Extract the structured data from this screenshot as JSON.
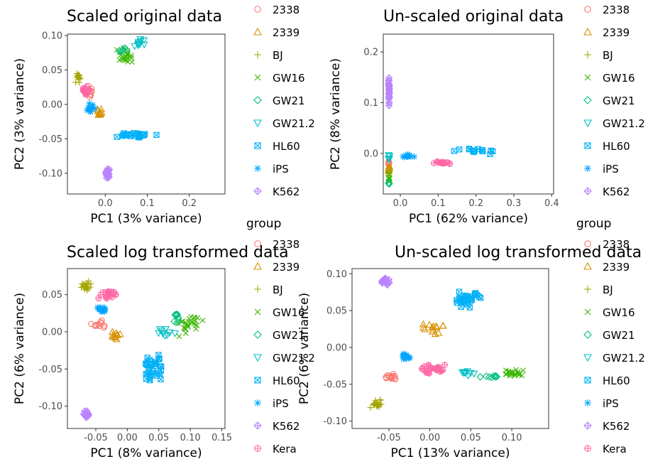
{
  "legend": {
    "title": "group",
    "groups": [
      {
        "name": "2338",
        "color": "#F8766D",
        "shape": "circle"
      },
      {
        "name": "2339",
        "color": "#D89000",
        "shape": "triangle"
      },
      {
        "name": "BJ",
        "color": "#A3A500",
        "shape": "plus"
      },
      {
        "name": "GW16",
        "color": "#39B600",
        "shape": "cross"
      },
      {
        "name": "GW21",
        "color": "#00BF7D",
        "shape": "diamond"
      },
      {
        "name": "GW21.2",
        "color": "#00BFC4",
        "shape": "triangle-down"
      },
      {
        "name": "HL60",
        "color": "#00B0F6",
        "shape": "square-cross"
      },
      {
        "name": "iPS",
        "color": "#00A5FF",
        "shape": "star"
      },
      {
        "name": "K562",
        "color": "#B983FF",
        "shape": "diamond-plus"
      },
      {
        "name": "Kera",
        "color": "#FF67A4",
        "shape": "circle-plus"
      }
    ]
  },
  "chart_data": [
    {
      "type": "scatter",
      "title": "Scaled original data",
      "xlabel": "PC1 (3% variance)",
      "ylabel": "PC2 (3% variance)",
      "xlim": [
        -0.09,
        0.285
      ],
      "ylim": [
        -0.13,
        0.102
      ],
      "xticks": [
        0.0,
        0.1,
        0.2
      ],
      "xtick_labels": [
        "0.0",
        "0.1",
        "0.2"
      ],
      "yticks": [
        -0.1,
        -0.05,
        0.0,
        0.05,
        0.1
      ],
      "ytick_labels": [
        "-0.10",
        "-0.05",
        "0.00",
        "0.05",
        "0.10"
      ],
      "clusters": [
        {
          "group": "2338",
          "center": [
            -0.04,
            0.02
          ],
          "spread": [
            0.015,
            0.01
          ],
          "n": 14
        },
        {
          "group": "2339",
          "center": [
            -0.015,
            -0.01
          ],
          "spread": [
            0.01,
            0.008
          ],
          "n": 10
        },
        {
          "group": "BJ",
          "center": [
            -0.065,
            0.04
          ],
          "spread": [
            0.008,
            0.012
          ],
          "n": 14
        },
        {
          "group": "GW16",
          "center": [
            0.05,
            0.07
          ],
          "spread": [
            0.03,
            0.015
          ],
          "n": 22
        },
        {
          "group": "GW21",
          "center": [
            0.04,
            0.08
          ],
          "spread": [
            0.02,
            0.008
          ],
          "n": 6
        },
        {
          "group": "GW21.2",
          "center": [
            0.08,
            0.09
          ],
          "spread": [
            0.02,
            0.01
          ],
          "n": 10
        },
        {
          "group": "HL60",
          "center": [
            0.07,
            -0.045
          ],
          "spread": [
            0.06,
            0.005
          ],
          "n": 26
        },
        {
          "group": "iPS",
          "center": [
            -0.035,
            -0.005
          ],
          "spread": [
            0.015,
            0.01
          ],
          "n": 12
        },
        {
          "group": "K562",
          "center": [
            0.005,
            -0.1
          ],
          "spread": [
            0.008,
            0.01
          ],
          "n": 22
        },
        {
          "group": "Kera",
          "center": [
            -0.045,
            0.02
          ],
          "spread": [
            0.015,
            0.01
          ],
          "n": 18
        }
      ]
    },
    {
      "type": "scatter",
      "title": "Un-scaled original data",
      "xlabel": "PC1 (62% variance)",
      "ylabel": "PC2 (8% variance)",
      "xlim": [
        -0.045,
        0.405
      ],
      "ylim": [
        -0.08,
        0.235
      ],
      "xticks": [
        0.0,
        0.1,
        0.2,
        0.3,
        0.4
      ],
      "xtick_labels": [
        "0.0",
        "0.1",
        "0.2",
        "0.3",
        "0.4"
      ],
      "yticks": [
        0.0,
        0.1,
        0.2
      ],
      "ytick_labels": [
        "0.0",
        "0.1",
        "0.2"
      ],
      "clusters": [
        {
          "group": "2338",
          "center": [
            -0.03,
            -0.02
          ],
          "spread": [
            0.002,
            0.01
          ],
          "n": 8
        },
        {
          "group": "2339",
          "center": [
            -0.03,
            -0.03
          ],
          "spread": [
            0.002,
            0.01
          ],
          "n": 8
        },
        {
          "group": "BJ",
          "center": [
            -0.03,
            -0.04
          ],
          "spread": [
            0.002,
            0.01
          ],
          "n": 8
        },
        {
          "group": "GW16",
          "center": [
            -0.03,
            -0.05
          ],
          "spread": [
            0.002,
            0.01
          ],
          "n": 8
        },
        {
          "group": "GW21",
          "center": [
            -0.03,
            -0.06
          ],
          "spread": [
            0.002,
            0.005
          ],
          "n": 4
        },
        {
          "group": "GW21.2",
          "center": [
            -0.03,
            -0.01
          ],
          "spread": [
            0.002,
            0.01
          ],
          "n": 6
        },
        {
          "group": "HL60",
          "center": [
            0.2,
            0.005
          ],
          "spread": [
            0.08,
            0.012
          ],
          "n": 14
        },
        {
          "group": "iPS",
          "center": [
            0.02,
            -0.005
          ],
          "spread": [
            0.02,
            0.006
          ],
          "n": 12
        },
        {
          "group": "K562",
          "center": [
            -0.03,
            0.13
          ],
          "spread": [
            0.002,
            0.05
          ],
          "n": 26
        },
        {
          "group": "Kera",
          "center": [
            0.11,
            -0.018
          ],
          "spread": [
            0.03,
            0.004
          ],
          "n": 18
        }
      ]
    },
    {
      "type": "scatter",
      "title": "Scaled log transformed data",
      "xlabel": "PC1 (8% variance)",
      "ylabel": "PC2 (6% variance)",
      "xlim": [
        -0.095,
        0.155
      ],
      "ylim": [
        -0.13,
        0.085
      ],
      "xticks": [
        -0.05,
        0.0,
        0.05,
        0.1,
        0.15
      ],
      "xtick_labels": [
        "-0.05",
        "0.00",
        "0.05",
        "0.10",
        "0.15"
      ],
      "yticks": [
        -0.1,
        -0.05,
        0.0,
        0.05
      ],
      "ytick_labels": [
        "-0.10",
        "-0.05",
        "0.00",
        "0.05"
      ],
      "clusters": [
        {
          "group": "2338",
          "center": [
            -0.045,
            0.01
          ],
          "spread": [
            0.015,
            0.008
          ],
          "n": 12
        },
        {
          "group": "2339",
          "center": [
            -0.02,
            -0.005
          ],
          "spread": [
            0.015,
            0.01
          ],
          "n": 12
        },
        {
          "group": "BJ",
          "center": [
            -0.065,
            0.06
          ],
          "spread": [
            0.012,
            0.01
          ],
          "n": 20
        },
        {
          "group": "GW16",
          "center": [
            0.1,
            0.01
          ],
          "spread": [
            0.025,
            0.02
          ],
          "n": 26
        },
        {
          "group": "GW21",
          "center": [
            0.08,
            0.02
          ],
          "spread": [
            0.015,
            0.01
          ],
          "n": 8
        },
        {
          "group": "GW21.2",
          "center": [
            0.06,
            0.0
          ],
          "spread": [
            0.02,
            0.01
          ],
          "n": 10
        },
        {
          "group": "HL60",
          "center": [
            0.04,
            -0.05
          ],
          "spread": [
            0.025,
            0.025
          ],
          "n": 34
        },
        {
          "group": "iPS",
          "center": [
            -0.04,
            0.03
          ],
          "spread": [
            0.012,
            0.008
          ],
          "n": 14
        },
        {
          "group": "K562",
          "center": [
            -0.065,
            -0.11
          ],
          "spread": [
            0.006,
            0.008
          ],
          "n": 24
        },
        {
          "group": "Kera",
          "center": [
            -0.03,
            0.05
          ],
          "spread": [
            0.02,
            0.01
          ],
          "n": 22
        }
      ]
    },
    {
      "type": "scatter",
      "title": "Un-scaled log transformed data",
      "xlabel": "PC1 (13% variance)",
      "ylabel": "PC2 (6% variance)",
      "xlim": [
        -0.095,
        0.145
      ],
      "ylim": [
        -0.11,
        0.107
      ],
      "xticks": [
        -0.05,
        0.0,
        0.05,
        0.1
      ],
      "xtick_labels": [
        "-0.05",
        "0.00",
        "0.05",
        "0.10"
      ],
      "yticks": [
        -0.1,
        -0.05,
        0.0,
        0.05,
        0.1
      ],
      "ytick_labels": [
        "-0.10",
        "-0.05",
        "0.00",
        "0.05",
        "0.10"
      ],
      "clusters": [
        {
          "group": "2338",
          "center": [
            -0.05,
            -0.04
          ],
          "spread": [
            0.015,
            0.006
          ],
          "n": 14
        },
        {
          "group": "2339",
          "center": [
            0.0,
            0.025
          ],
          "spread": [
            0.025,
            0.012
          ],
          "n": 14
        },
        {
          "group": "BJ",
          "center": [
            -0.065,
            -0.075
          ],
          "spread": [
            0.012,
            0.01
          ],
          "n": 20
        },
        {
          "group": "GW16",
          "center": [
            0.1,
            -0.035
          ],
          "spread": [
            0.02,
            0.006
          ],
          "n": 22
        },
        {
          "group": "GW21",
          "center": [
            0.07,
            -0.04
          ],
          "spread": [
            0.02,
            0.004
          ],
          "n": 8
        },
        {
          "group": "GW21.2",
          "center": [
            0.05,
            -0.035
          ],
          "spread": [
            0.02,
            0.005
          ],
          "n": 8
        },
        {
          "group": "HL60",
          "center": [
            0.045,
            0.065
          ],
          "spread": [
            0.022,
            0.014
          ],
          "n": 30
        },
        {
          "group": "iPS",
          "center": [
            -0.03,
            -0.012
          ],
          "spread": [
            0.01,
            0.006
          ],
          "n": 14
        },
        {
          "group": "K562",
          "center": [
            -0.055,
            0.09
          ],
          "spread": [
            0.008,
            0.006
          ],
          "n": 22
        },
        {
          "group": "Kera",
          "center": [
            0.0,
            -0.03
          ],
          "spread": [
            0.035,
            0.008
          ],
          "n": 28
        }
      ]
    }
  ]
}
